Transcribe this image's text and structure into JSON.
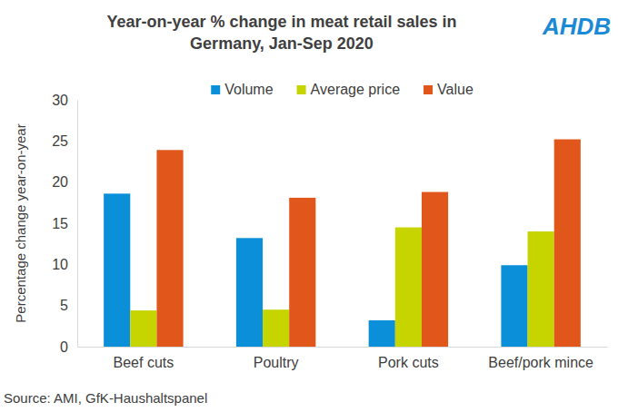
{
  "chart_data": {
    "type": "bar",
    "title": "Year-on-year % change in meat retail sales in Germany, Jan-Sep 2020",
    "y_label": "Percentage change year-on-year",
    "source": "Source: AMI, GfK-Haushaltspanel",
    "logo": "AHDB",
    "categories": [
      "Beef cuts",
      "Poultry",
      "Pork cuts",
      "Beef/pork mince"
    ],
    "series": [
      {
        "name": "Volume",
        "color": "#0a8fd8",
        "values": [
          18.6,
          13.2,
          3.2,
          9.9
        ]
      },
      {
        "name": "Average price",
        "color": "#c6d400",
        "values": [
          4.4,
          4.5,
          14.5,
          14.0
        ]
      },
      {
        "name": "Value",
        "color": "#e0561b",
        "values": [
          23.9,
          18.1,
          18.8,
          25.2
        ]
      }
    ],
    "ylim": [
      0,
      30
    ],
    "yticks": [
      0,
      5,
      10,
      15,
      20,
      25,
      30
    ],
    "grid": false,
    "legend": "top"
  }
}
